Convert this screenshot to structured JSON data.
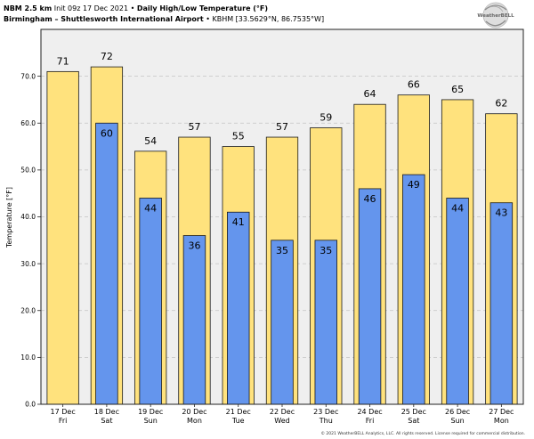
{
  "header": {
    "model": "NBM 2.5 km",
    "init": "Init 09z 17 Dec 2021",
    "separator": "•",
    "location": "Birmingham – Shuttlesworth International Airport",
    "station": "KBHM [33.5629°N, 86.7535°W]"
  },
  "logo": {
    "text": "WeatherBELL",
    "icon": "weatherbell-swirl-logo"
  },
  "footer": {
    "copyright": "© 2021 WeatherBELL Analytics, LLC. All rights reserved. License required for commercial distribution."
  },
  "colors": {
    "plot_background": "#efefef",
    "grid": "#c4c4c4",
    "axis": "#222222"
  },
  "chart_data": {
    "type": "bar",
    "bar_mode": "overlay",
    "title": "Daily High/Low Temperature (°F)",
    "xlabel": "",
    "ylabel": "Temperature [°F]",
    "ylim": [
      0,
      80
    ],
    "yticks": [
      0,
      10,
      20,
      30,
      40,
      50,
      60,
      70
    ],
    "ytick_labels": [
      "0.0",
      "10.0",
      "20.0",
      "30.0",
      "40.0",
      "50.0",
      "60.0",
      "70.0"
    ],
    "grid": "horizontal-dashed",
    "legend": "none",
    "categories": [
      "17 Dec",
      "18 Dec",
      "19 Dec",
      "20 Dec",
      "21 Dec",
      "22 Dec",
      "23 Dec",
      "24 Dec",
      "25 Dec",
      "26 Dec",
      "27 Dec"
    ],
    "weekdays": [
      "Fri",
      "Sat",
      "Sun",
      "Mon",
      "Tue",
      "Wed",
      "Thu",
      "Fri",
      "Sat",
      "Sun",
      "Mon"
    ],
    "series": [
      {
        "values": [
          71,
          72,
          54,
          57,
          55,
          57,
          59,
          64,
          66,
          65,
          62
        ],
        "color": "#ffe27d"
      },
      {
        "values": [
          null,
          60,
          44,
          36,
          41,
          35,
          35,
          46,
          49,
          44,
          43
        ],
        "color": "#6495ed"
      }
    ],
    "data_labels": true
  }
}
